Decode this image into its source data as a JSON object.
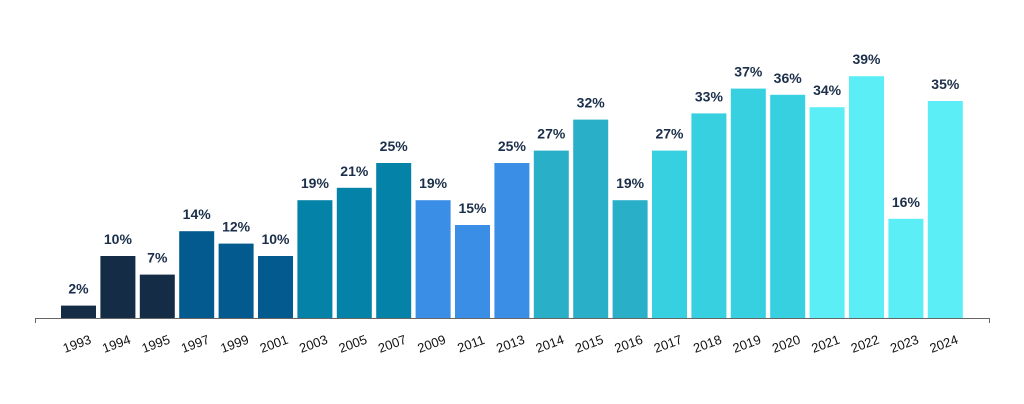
{
  "chart_data": {
    "type": "bar",
    "categories": [
      "1993",
      "1994",
      "1995",
      "1997",
      "1999",
      "2001",
      "2003",
      "2005",
      "2007",
      "2009",
      "2011",
      "2013",
      "2014",
      "2015",
      "2016",
      "2017",
      "2018",
      "2019",
      "2020",
      "2021",
      "2022",
      "2023",
      "2024"
    ],
    "values": [
      2,
      10,
      7,
      14,
      12,
      10,
      19,
      21,
      25,
      19,
      15,
      25,
      27,
      32,
      19,
      27,
      33,
      37,
      36,
      34,
      39,
      16,
      35
    ],
    "value_labels": [
      "2%",
      "10%",
      "7%",
      "14%",
      "12%",
      "10%",
      "19%",
      "21%",
      "25%",
      "19%",
      "15%",
      "25%",
      "27%",
      "32%",
      "19%",
      "27%",
      "33%",
      "37%",
      "36%",
      "34%",
      "39%",
      "16%",
      "35%"
    ],
    "colors": [
      "#152c47",
      "#152c47",
      "#152c47",
      "#035a8e",
      "#035a8e",
      "#035a8e",
      "#0582a8",
      "#0582a8",
      "#0582a8",
      "#3a8ee6",
      "#3a8ee6",
      "#3a8ee6",
      "#29b0c8",
      "#29b0c8",
      "#29b0c8",
      "#36d0e0",
      "#36d0e0",
      "#36d0e0",
      "#36d0e0",
      "#5ceef7",
      "#5ceef7",
      "#5ceef7",
      "#5ceef7"
    ]
  }
}
